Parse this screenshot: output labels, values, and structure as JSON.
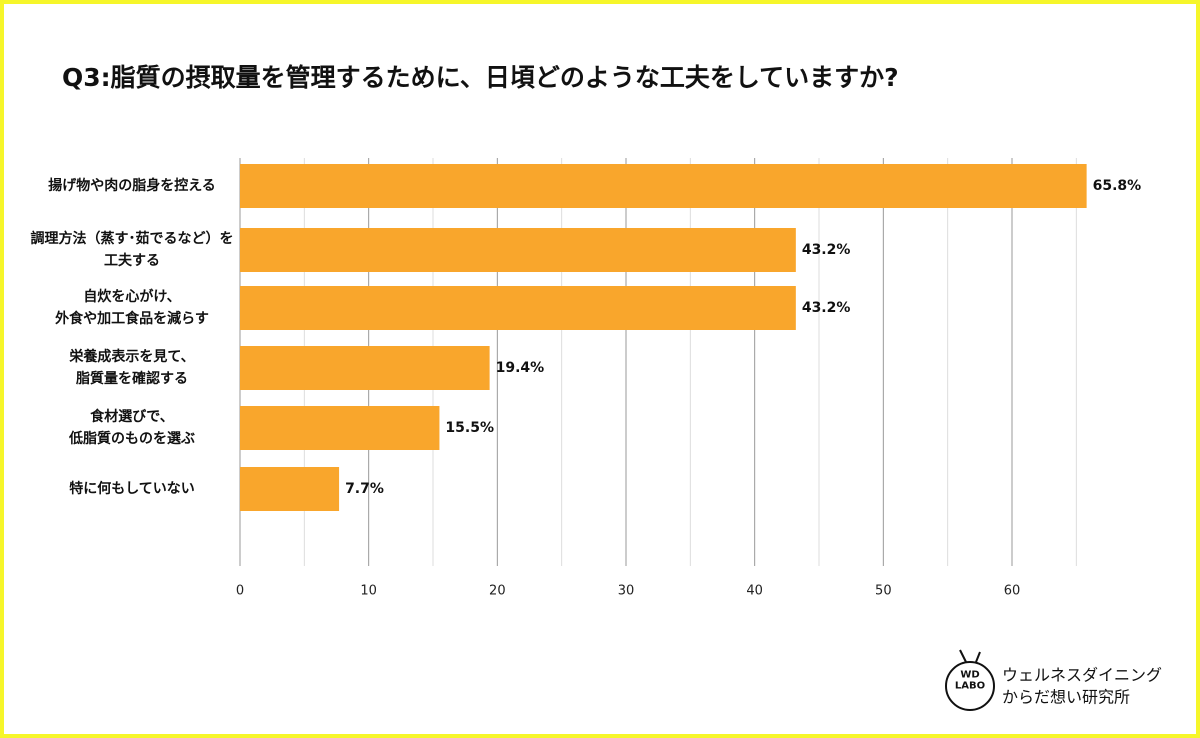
{
  "chart_data": {
    "type": "bar",
    "orientation": "horizontal",
    "title": "Q3:脂質の摂取量を管理するために、日頃どのような工夫をしていますか?",
    "categories": [
      "揚げ物や肉の脂身を控える",
      "調理方法（蒸す･茹でるなど）を\n工夫する",
      "自炊を心がけ、\n外食や加工食品を減らす",
      "栄養成表示を見て、\n脂質量を確認する",
      "食材選びで、\n低脂質のものを選ぶ",
      "特に何もしていない"
    ],
    "values": [
      65.8,
      43.2,
      43.2,
      19.4,
      15.5,
      7.7
    ],
    "value_labels": [
      "65.8%",
      "43.2%",
      "43.2%",
      "19.4%",
      "15.5%",
      "7.7%"
    ],
    "color": "#f9a62c",
    "xlim": [
      0,
      66.5
    ],
    "xticks": [
      0,
      10,
      20,
      30,
      40,
      50,
      60
    ],
    "minor_xticks": [
      5,
      15,
      25,
      35,
      45,
      55,
      65
    ],
    "grid": true
  },
  "brand": {
    "logo": "WD\nLABO",
    "name_line1": "ウェルネスダイニング",
    "name_line2": "からだ想い研究所"
  }
}
